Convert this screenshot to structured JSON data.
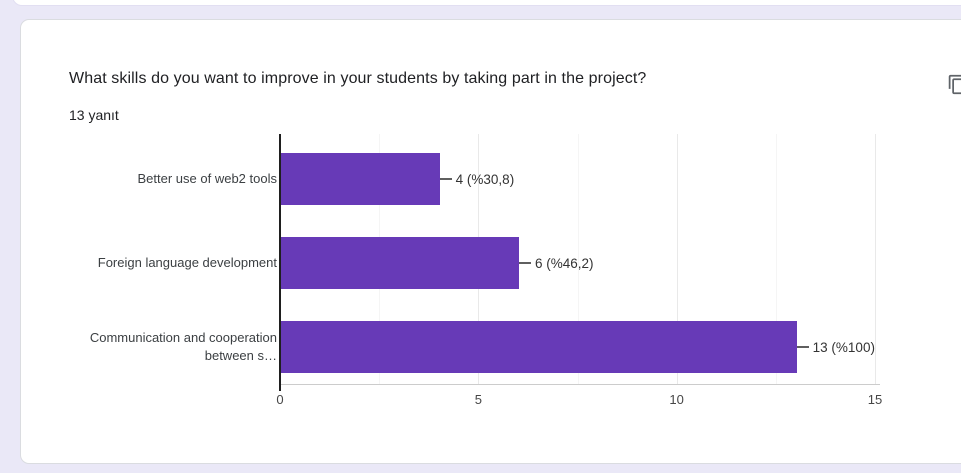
{
  "card": {
    "title": "What skills do you want to improve in your students by taking part in the project?",
    "response_count": "13 yanıt"
  },
  "toolbar": {
    "copy_icon": "content-copy-icon"
  },
  "colors": {
    "page_background": "#eae8f7",
    "card_background": "#ffffff",
    "card_border": "#dadce0",
    "bar": "#673ab7",
    "icon": "#5f6368",
    "title_text": "#202124"
  },
  "chart_data": {
    "type": "bar",
    "orientation": "horizontal",
    "title": "What skills do you want to improve in your students by taking part in the project?",
    "categories": [
      "Better use of web2 tools",
      "Foreign language development",
      "Communication and cooperation between s…"
    ],
    "values": [
      4,
      6,
      13
    ],
    "annotations": [
      "4 (%30,8)",
      "6 (%46,2)",
      "13 (%100)"
    ],
    "total_responses": 13,
    "xlabel": "",
    "ylabel": "",
    "xlim": [
      0,
      15
    ],
    "xticks": [
      0,
      5,
      10,
      15
    ],
    "xtick_labels": [
      "0",
      "5",
      "10",
      "15"
    ],
    "grid": true,
    "legend": false,
    "bar_color": "#673ab7"
  }
}
